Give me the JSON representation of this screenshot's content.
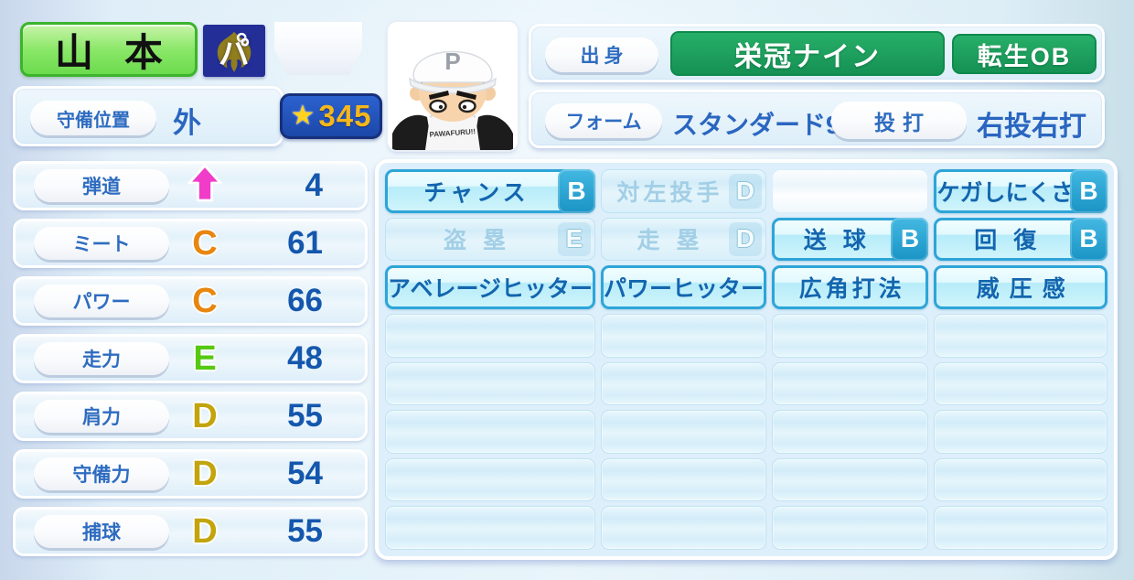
{
  "header": {
    "player_name": "山本",
    "league_badge": "パ",
    "star_rating": "345",
    "origin_label": "出身",
    "origin_value": "栄冠ナイン",
    "origin_tag": "転生OB",
    "position_label": "守備位置",
    "position_value": "外",
    "form_label": "フォーム",
    "form_value": "スタンダード9",
    "throw_bat_label": "投打",
    "throw_bat_value": "右投右打",
    "avatar_cap_letter": "P",
    "avatar_jersey_text": "PAWAFURU!!"
  },
  "stats": {
    "rows": [
      {
        "name": "trajectory",
        "label": "弾道",
        "icon": "up-arrow-icon",
        "grade": "",
        "grade_color": "",
        "value": "4"
      },
      {
        "name": "contact",
        "label": "ミート",
        "grade": "C",
        "grade_color": "#e8860f",
        "value": "61"
      },
      {
        "name": "power",
        "label": "パワー",
        "grade": "C",
        "grade_color": "#e8860f",
        "value": "66"
      },
      {
        "name": "speed",
        "label": "走力",
        "grade": "E",
        "grade_color": "#56c913",
        "value": "48"
      },
      {
        "name": "arm",
        "label": "肩力",
        "grade": "D",
        "grade_color": "#c2a40c",
        "value": "55"
      },
      {
        "name": "fielding",
        "label": "守備力",
        "grade": "D",
        "grade_color": "#c2a40c",
        "value": "54"
      },
      {
        "name": "catching",
        "label": "捕球",
        "grade": "D",
        "grade_color": "#c2a40c",
        "value": "55"
      }
    ]
  },
  "abilities": {
    "rows": [
      [
        {
          "label": "チャンス",
          "grade": "B",
          "state": "active"
        },
        {
          "label": "対左投手",
          "grade": "D",
          "state": "inactive"
        },
        {
          "label": "",
          "grade": "",
          "state": "empty-bright"
        },
        {
          "label": "ケガしにくさ",
          "grade": "B",
          "state": "active"
        }
      ],
      [
        {
          "label": "盗塁",
          "grade": "E",
          "state": "inactive"
        },
        {
          "label": "走塁",
          "grade": "D",
          "state": "inactive"
        },
        {
          "label": "送球",
          "grade": "B",
          "state": "active"
        },
        {
          "label": "回復",
          "grade": "B",
          "state": "active"
        }
      ],
      [
        {
          "label": "アベレージヒッター",
          "grade": "",
          "state": "active"
        },
        {
          "label": "パワーヒッター",
          "grade": "",
          "state": "active"
        },
        {
          "label": "広角打法",
          "grade": "",
          "state": "active"
        },
        {
          "label": "威圧感",
          "grade": "",
          "state": "active"
        }
      ],
      [
        {
          "label": "",
          "grade": "",
          "state": "empty"
        },
        {
          "label": "",
          "grade": "",
          "state": "empty"
        },
        {
          "label": "",
          "grade": "",
          "state": "empty"
        },
        {
          "label": "",
          "grade": "",
          "state": "empty"
        }
      ],
      [
        {
          "label": "",
          "grade": "",
          "state": "empty"
        },
        {
          "label": "",
          "grade": "",
          "state": "empty"
        },
        {
          "label": "",
          "grade": "",
          "state": "empty"
        },
        {
          "label": "",
          "grade": "",
          "state": "empty"
        }
      ],
      [
        {
          "label": "",
          "grade": "",
          "state": "empty"
        },
        {
          "label": "",
          "grade": "",
          "state": "empty"
        },
        {
          "label": "",
          "grade": "",
          "state": "empty"
        },
        {
          "label": "",
          "grade": "",
          "state": "empty"
        }
      ],
      [
        {
          "label": "",
          "grade": "",
          "state": "empty"
        },
        {
          "label": "",
          "grade": "",
          "state": "empty"
        },
        {
          "label": "",
          "grade": "",
          "state": "empty"
        },
        {
          "label": "",
          "grade": "",
          "state": "empty"
        }
      ],
      [
        {
          "label": "",
          "grade": "",
          "state": "empty"
        },
        {
          "label": "",
          "grade": "",
          "state": "empty"
        },
        {
          "label": "",
          "grade": "",
          "state": "empty"
        },
        {
          "label": "",
          "grade": "",
          "state": "empty"
        }
      ]
    ]
  },
  "colors": {
    "accent_green": "#1b9e5d",
    "badge_navy": "#232e96",
    "star_box_blue": "#1e4fb4",
    "star_gold": "#f5b71c",
    "active_cyan_border": "#2da5d8",
    "active_badge_teal": "#1a94c5",
    "grade_c_orange": "#e8860f",
    "grade_e_green": "#56c913",
    "grade_d_gold": "#c2a40c",
    "trajectory_arrow_pink": "#f03cc8",
    "label_blue": "#2e6cc0",
    "value_blue": "#1457ad"
  }
}
